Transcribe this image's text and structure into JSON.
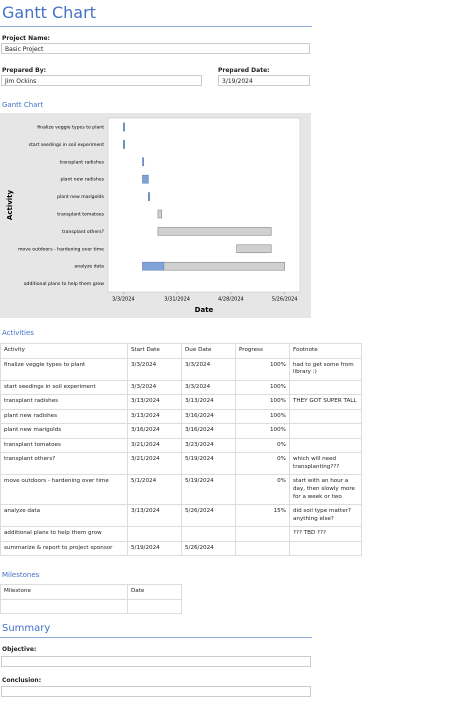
{
  "title": "Gantt Chart",
  "fields": {
    "project_label": "Project Name:",
    "project": "Basic Project",
    "prepared_by_label": "Prepared By:",
    "prepared_by": "Jim Ockins",
    "prepared_date_label": "Prepared Date:",
    "prepared_date": "3/19/2024"
  },
  "gantt": {
    "heading": "Gantt Chart",
    "y_label": "Activity",
    "x_label": "Date",
    "xlim": [
      "2/24/2024",
      "6/3/2024"
    ],
    "xticks": [
      "3/3/2024",
      "3/31/2024",
      "4/28/2024",
      "5/26/2024"
    ],
    "rows_shown": 10,
    "progress_color": "#7fa3d8",
    "bar_color": "#d0d0d0"
  },
  "activities": {
    "heading": "Activities",
    "columns": [
      "Activity",
      "Start Date",
      "Due Date",
      "Progress",
      "Footnote"
    ],
    "rows": [
      {
        "name": "finalize veggie types to plant",
        "start": "3/3/2024",
        "due": "3/3/2024",
        "progress": 100,
        "progress_label": "100%",
        "footnote": "had to get some from library :)"
      },
      {
        "name": "start seedings in soil experiment",
        "start": "3/3/2024",
        "due": "3/3/2024",
        "progress": 100,
        "progress_label": "100%",
        "footnote": null
      },
      {
        "name": "transplant radishes",
        "start": "3/13/2024",
        "due": "3/13/2024",
        "progress": 100,
        "progress_label": "100%",
        "footnote": "THEY GOT SUPER TALL"
      },
      {
        "name": "plant new radishes",
        "start": "3/13/2024",
        "due": "3/16/2024",
        "progress": 100,
        "progress_label": "100%",
        "footnote": null
      },
      {
        "name": "plant new marigolds",
        "start": "3/16/2024",
        "due": "3/16/2024",
        "progress": 100,
        "progress_label": "100%",
        "footnote": null
      },
      {
        "name": "transplant tomatoes",
        "start": "3/21/2024",
        "due": "3/23/2024",
        "progress": 0,
        "progress_label": "0%",
        "footnote": null
      },
      {
        "name": "transplant others?",
        "start": "3/21/2024",
        "due": "5/19/2024",
        "progress": 0,
        "progress_label": "0%",
        "footnote": "which will need transplanting???"
      },
      {
        "name": "move outdoors - hardening over time",
        "start": "5/1/2024",
        "due": "5/19/2024",
        "progress": 0,
        "progress_label": "0%",
        "footnote": "start with an hour a day, then slowly more for a week or two"
      },
      {
        "name": "analyze data",
        "start": "3/13/2024",
        "due": "5/26/2024",
        "progress": 15,
        "progress_label": "15%",
        "footnote": "did soil type matter? anything else?"
      },
      {
        "name": "additional plans to help them grow",
        "start": null,
        "due": null,
        "progress": null,
        "progress_label": null,
        "footnote": "??? TBD ???"
      },
      {
        "name": "summarize & report to project sponsor",
        "start": "5/19/2024",
        "due": "5/26/2024",
        "progress": null,
        "progress_label": null,
        "footnote": null
      }
    ]
  },
  "milestones": {
    "heading": "Milestones",
    "columns": [
      "Milestone",
      "Date"
    ]
  },
  "summary": {
    "heading": "Summary",
    "objective_label": "Objective:",
    "conclusion_label": "Conclusion:"
  }
}
